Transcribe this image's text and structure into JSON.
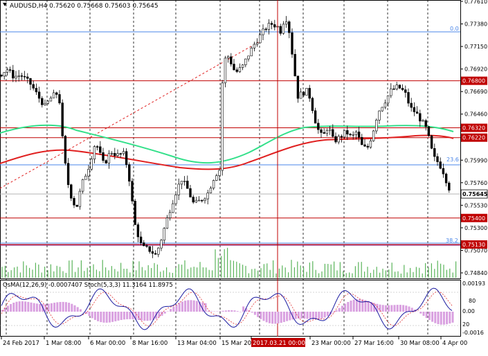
{
  "window": {
    "title": "AUDUSD,H4  0.75620 0.75668 0.75603 0.75645"
  },
  "main_chart": {
    "price_labels": [
      {
        "text": "0.77610",
        "value": 0.7761
      },
      {
        "text": "0.77380",
        "value": 0.7738
      },
      {
        "text": "0.77150",
        "value": 0.7715
      },
      {
        "text": "0.76920",
        "value": 0.7692
      },
      {
        "text": "0.76690",
        "value": 0.7669
      },
      {
        "text": "0.76460",
        "value": 0.7646
      },
      {
        "text": "0.75990",
        "value": 0.7599
      },
      {
        "text": "0.75760",
        "value": 0.7576
      },
      {
        "text": "0.75530",
        "value": 0.7553
      },
      {
        "text": "0.75300",
        "value": 0.753
      },
      {
        "text": "0.75070",
        "value": 0.7507
      },
      {
        "text": "0.74840",
        "value": 0.7484
      }
    ],
    "level_tags": [
      {
        "text": "0.76800",
        "value": 0.768
      },
      {
        "text": "0.76320",
        "value": 0.7632
      },
      {
        "text": "0.76220",
        "value": 0.7622
      },
      {
        "text": "0.75645",
        "value": 0.75645
      },
      {
        "text": "0.75400",
        "value": 0.754
      },
      {
        "text": "0.75130",
        "value": 0.7513
      }
    ],
    "fib_labels": [
      "0.0",
      "23.6",
      "38.2"
    ],
    "current_price": "0.75645"
  },
  "indicator": {
    "title": "OsMA(12,26,9) -0.0007407  Stoch(5,3,3) 11.3164 11.8975",
    "scale_labels": [
      "0.00193",
      "80",
      "0.00",
      "20",
      "-0.0016"
    ]
  },
  "time_axis": {
    "labels": [
      "24 Feb 2017",
      "1 Mar 08:00",
      "6 Mar 00:00",
      "8 Mar 16:00",
      "13 Mar 04:00",
      "15 Mar 20",
      "2017.03.21 00:00",
      "23 Mar 00:00",
      "27 Mar 16:00",
      "30 Mar 08:00",
      "4 Apr 00"
    ]
  },
  "colors": {
    "bull_candle": "#ffffff",
    "bear_candle": "#000000",
    "level_line": "#c00000",
    "fib_line": "#4a86e8",
    "ma_green": "#33e08a",
    "ma_red": "#e02020",
    "osma": "#d9a0e0",
    "stoch_main": "#1a1aa0",
    "stoch_signal": "#e03030"
  }
}
